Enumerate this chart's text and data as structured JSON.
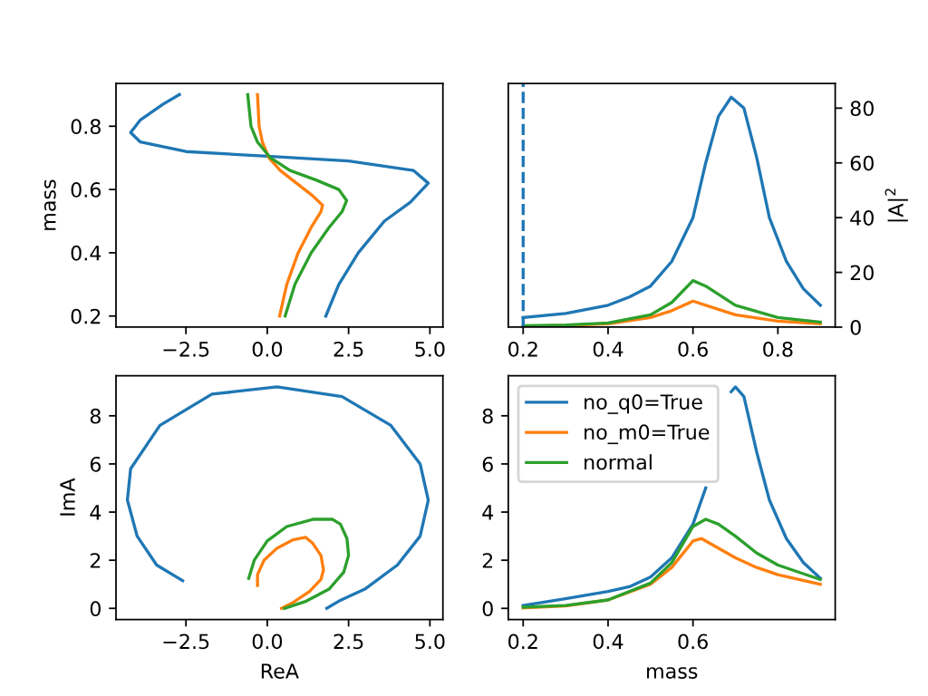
{
  "chart_data": [
    {
      "type": "line",
      "ylabel": "mass",
      "xlim": [
        -4.65,
        5.4
      ],
      "ylim": [
        0.165,
        0.935
      ],
      "xticks": [
        {
          "value": -2.5,
          "label": "−2.5"
        },
        {
          "value": 0,
          "label": "0.0"
        },
        {
          "value": 2.5,
          "label": "2.5"
        },
        {
          "value": 5,
          "label": "5.0"
        }
      ],
      "yticks": [
        0.2,
        0.4,
        0.6,
        0.8
      ],
      "grid": false,
      "series": [
        {
          "color": "#1f77b4",
          "x": [
            1.8,
            2.2,
            2.8,
            3.6,
            4.4,
            4.95,
            4.5,
            2.5,
            0,
            -2.5,
            -3.9,
            -4.2,
            -3.9,
            -3.2,
            -2.7
          ],
          "values": [
            0.2,
            0.3,
            0.4,
            0.5,
            0.56,
            0.62,
            0.66,
            0.69,
            0.705,
            0.72,
            0.75,
            0.78,
            0.82,
            0.87,
            0.9
          ]
        },
        {
          "color": "#ff7f0e",
          "x": [
            0.38,
            0.6,
            0.95,
            1.35,
            1.65,
            1.7,
            1.4,
            0.9,
            0.4,
            0.05,
            -0.15,
            -0.25,
            -0.3
          ],
          "values": [
            0.2,
            0.3,
            0.4,
            0.48,
            0.53,
            0.55,
            0.58,
            0.62,
            0.66,
            0.7,
            0.75,
            0.8,
            0.9
          ]
        },
        {
          "color": "#2ca02c",
          "x": [
            0.55,
            0.85,
            1.35,
            1.9,
            2.3,
            2.44,
            2.2,
            1.5,
            0.7,
            0.1,
            -0.3,
            -0.5,
            -0.6
          ],
          "values": [
            0.2,
            0.3,
            0.4,
            0.48,
            0.53,
            0.565,
            0.6,
            0.63,
            0.66,
            0.7,
            0.75,
            0.8,
            0.9
          ]
        }
      ]
    },
    {
      "type": "line",
      "y2label": "|A|$^{2}$",
      "xlim": [
        0.165,
        0.935
      ],
      "xticks": [
        0.2,
        0.4,
        0.6,
        0.8
      ],
      "y2lim": [
        0,
        89
      ],
      "y2ticks": [
        0,
        20,
        40,
        60,
        80
      ],
      "grid": false,
      "ref_lines": [
        {
          "axis": "x",
          "value": 0.2,
          "color": "#1f77b4",
          "line_style": "dashed"
        }
      ],
      "series": [
        {
          "color": "#1f77b4",
          "axis": "y2",
          "x": [
            0.2,
            0.3,
            0.4,
            0.45,
            0.5,
            0.55,
            0.6,
            0.63,
            0.66,
            0.69,
            0.72,
            0.75,
            0.78,
            0.82,
            0.86,
            0.9
          ],
          "values": [
            3.5,
            5,
            8,
            11,
            15,
            24,
            40,
            60,
            77,
            84,
            80,
            62,
            40,
            24,
            14,
            8
          ]
        },
        {
          "color": "#ff7f0e",
          "axis": "y2",
          "x": [
            0.2,
            0.3,
            0.4,
            0.5,
            0.55,
            0.6,
            0.65,
            0.7,
            0.8,
            0.9
          ],
          "values": [
            0.3,
            0.6,
            1.2,
            3.5,
            6,
            9.5,
            7,
            4.5,
            2.2,
            1.2
          ]
        },
        {
          "color": "#2ca02c",
          "axis": "y2",
          "x": [
            0.2,
            0.3,
            0.4,
            0.5,
            0.55,
            0.6,
            0.63,
            0.7,
            0.8,
            0.9
          ],
          "values": [
            0.5,
            0.8,
            1.5,
            4.5,
            9,
            17,
            15,
            8,
            3.5,
            1.8
          ]
        }
      ]
    },
    {
      "type": "line",
      "xlabel": "ReA",
      "ylabel": "ImA",
      "xlim": [
        -4.65,
        5.4
      ],
      "ylim": [
        -0.46,
        9.66
      ],
      "xticks": [
        {
          "value": -2.5,
          "label": "−2.5"
        },
        {
          "value": 0,
          "label": "0.0"
        },
        {
          "value": 2.5,
          "label": "2.5"
        },
        {
          "value": 5,
          "label": "5.0"
        }
      ],
      "yticks": [
        0,
        2,
        4,
        6,
        8
      ],
      "grid": false,
      "series": [
        {
          "color": "#1f77b4",
          "x": [
            1.83,
            2.2,
            3.0,
            4.0,
            4.7,
            4.95,
            4.7,
            3.8,
            2.3,
            0.3,
            -1.7,
            -3.3,
            -4.2,
            -4.3,
            -4.0,
            -3.4,
            -2.6
          ],
          "values": [
            0,
            0.3,
            0.8,
            1.8,
            3.0,
            4.5,
            6.0,
            7.6,
            8.8,
            9.2,
            8.9,
            7.6,
            5.8,
            4.5,
            3.0,
            1.8,
            1.15
          ]
        },
        {
          "color": "#ff7f0e",
          "x": [
            0.44,
            0.8,
            1.3,
            1.65,
            1.73,
            1.65,
            1.4,
            1.18,
            0.8,
            0.3,
            -0.1,
            -0.3,
            -0.3
          ],
          "values": [
            0,
            0.25,
            0.7,
            1.2,
            1.6,
            2.2,
            2.7,
            2.95,
            2.85,
            2.5,
            2.0,
            1.4,
            0.95
          ]
        },
        {
          "color": "#2ca02c",
          "x": [
            0.53,
            1.2,
            1.9,
            2.35,
            2.5,
            2.45,
            2.25,
            2.0,
            1.4,
            0.6,
            0,
            -0.4,
            -0.57
          ],
          "values": [
            0,
            0.3,
            0.8,
            1.5,
            2.2,
            2.9,
            3.5,
            3.7,
            3.7,
            3.4,
            2.8,
            2.0,
            1.25
          ]
        }
      ]
    },
    {
      "type": "line",
      "xlabel": "mass",
      "xlim": [
        0.165,
        0.935
      ],
      "ylim": [
        -0.46,
        9.66
      ],
      "xticks": [
        0.2,
        0.4,
        0.6
      ],
      "yticks": [
        0,
        2,
        4,
        6,
        8
      ],
      "grid": false,
      "legend": "top left",
      "series": [
        {
          "name": "no_q0=True",
          "color": "#1f77b4",
          "x": [
            0.2,
            0.3,
            0.4,
            0.45,
            0.5,
            0.55,
            0.6,
            0.63,
            0.66,
            0.69,
            0.7,
            0.72,
            0.75,
            0.78,
            0.82,
            0.86,
            0.9
          ],
          "values": [
            0.12,
            0.4,
            0.7,
            0.9,
            1.3,
            2.1,
            3.5,
            5.0,
            null,
            9.0,
            9.2,
            8.8,
            6.5,
            4.5,
            2.9,
            1.9,
            1.25
          ]
        },
        {
          "name": "no_m0=True",
          "color": "#ff7f0e",
          "x": [
            0.2,
            0.3,
            0.4,
            0.5,
            0.55,
            0.6,
            0.62,
            0.65,
            0.7,
            0.75,
            0.8,
            0.9
          ],
          "values": [
            0.02,
            0.1,
            0.35,
            1.0,
            1.7,
            2.8,
            2.9,
            2.6,
            2.1,
            1.7,
            1.4,
            1.0
          ]
        },
        {
          "name": "normal",
          "color": "#2ca02c",
          "x": [
            0.2,
            0.3,
            0.4,
            0.5,
            0.55,
            0.6,
            0.63,
            0.66,
            0.7,
            0.75,
            0.8,
            0.9
          ],
          "values": [
            0.05,
            0.12,
            0.35,
            1.05,
            1.9,
            3.4,
            3.7,
            3.5,
            3.0,
            2.3,
            1.8,
            1.2
          ]
        }
      ]
    }
  ]
}
